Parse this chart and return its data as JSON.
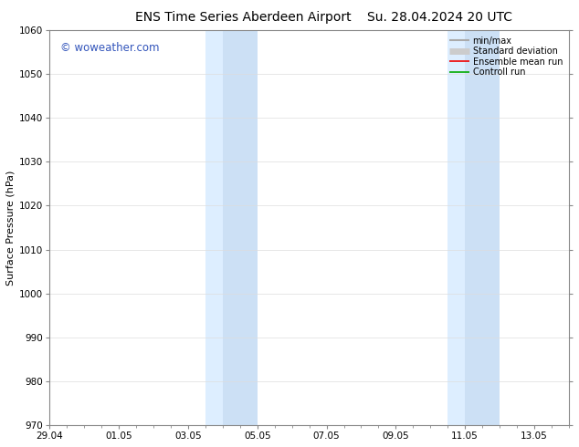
{
  "title_left": "ENS Time Series Aberdeen Airport",
  "title_right": "Su. 28.04.2024 20 UTC",
  "ylabel": "Surface Pressure (hPa)",
  "ylim": [
    970,
    1060
  ],
  "yticks": [
    970,
    980,
    990,
    1000,
    1010,
    1020,
    1030,
    1040,
    1050,
    1060
  ],
  "xlim": [
    0,
    15
  ],
  "xtick_labels": [
    "29.04",
    "01.05",
    "03.05",
    "05.05",
    "07.05",
    "09.05",
    "11.05",
    "13.05"
  ],
  "xtick_positions": [
    0,
    2,
    4,
    6,
    8,
    10,
    12,
    14
  ],
  "shaded_bands": [
    {
      "xstart": 4.5,
      "xend": 5.0,
      "color": "#ddeeff"
    },
    {
      "xstart": 5.0,
      "xend": 6.0,
      "color": "#cce0f5"
    },
    {
      "xstart": 11.5,
      "xend": 12.0,
      "color": "#ddeeff"
    },
    {
      "xstart": 12.0,
      "xend": 13.0,
      "color": "#cce0f5"
    }
  ],
  "watermark_text": "© woweather.com",
  "watermark_color": "#3355bb",
  "legend_items": [
    {
      "label": "min/max",
      "color": "#aaaaaa",
      "lw": 1.5
    },
    {
      "label": "Standard deviation",
      "color": "#cccccc",
      "lw": 5
    },
    {
      "label": "Ensemble mean run",
      "color": "#ee0000",
      "lw": 1.2
    },
    {
      "label": "Controll run",
      "color": "#00aa00",
      "lw": 1.2
    }
  ],
  "bg_color": "#ffffff",
  "grid_color": "#dddddd",
  "tick_color": "#000000",
  "spine_color": "#888888",
  "title_fontsize": 10,
  "ylabel_fontsize": 8,
  "tick_fontsize": 7.5,
  "watermark_fontsize": 8.5,
  "legend_fontsize": 7
}
